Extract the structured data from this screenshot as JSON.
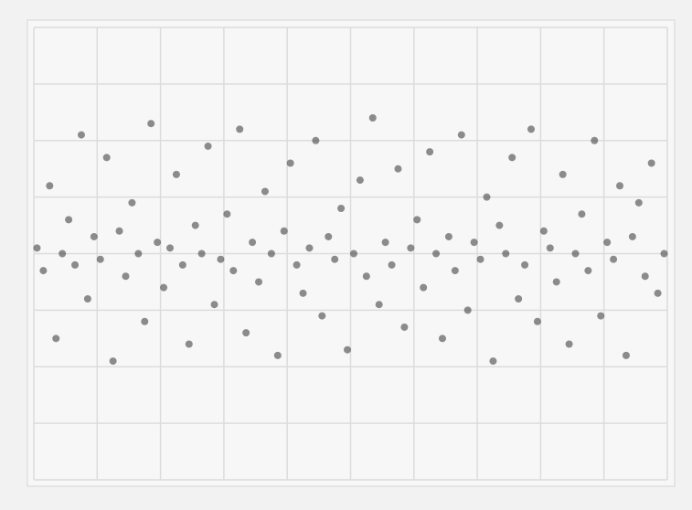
{
  "chart_data": {
    "type": "scatter",
    "xlim": [
      0,
      10
    ],
    "xticks": [
      0,
      1,
      2,
      3,
      4,
      5,
      6,
      7,
      8,
      9,
      10
    ],
    "ylim": [
      -4,
      4
    ],
    "yticks": [
      -4,
      -3,
      -2,
      -1,
      0,
      1,
      2,
      3,
      4
    ],
    "grid": true,
    "color": "#333333",
    "x": [
      0.05,
      0.15,
      0.25,
      0.35,
      0.45,
      0.55,
      0.65,
      0.75,
      0.85,
      0.95,
      1.05,
      1.15,
      1.25,
      1.35,
      1.45,
      1.55,
      1.65,
      1.75,
      1.85,
      1.95,
      2.05,
      2.15,
      2.25,
      2.35,
      2.45,
      2.55,
      2.65,
      2.75,
      2.85,
      2.95,
      3.05,
      3.15,
      3.25,
      3.35,
      3.45,
      3.55,
      3.65,
      3.75,
      3.85,
      3.95,
      4.05,
      4.15,
      4.25,
      4.35,
      4.45,
      4.55,
      4.65,
      4.75,
      4.85,
      4.95,
      5.05,
      5.15,
      5.25,
      5.35,
      5.45,
      5.55,
      5.65,
      5.75,
      5.85,
      5.95,
      6.05,
      6.15,
      6.25,
      6.35,
      6.45,
      6.55,
      6.65,
      6.75,
      6.85,
      6.95,
      7.05,
      7.15,
      7.25,
      7.35,
      7.45,
      7.55,
      7.65,
      7.75,
      7.85,
      7.95,
      8.05,
      8.15,
      8.25,
      8.35,
      8.45,
      8.55,
      8.65,
      8.75,
      8.85,
      8.95,
      9.05,
      9.15,
      9.25,
      9.35,
      9.45,
      9.55,
      9.65,
      9.75,
      9.85,
      9.95
    ],
    "values": [
      0.1,
      -0.3,
      1.2,
      -1.5,
      0.0,
      0.6,
      -0.2,
      2.1,
      -0.8,
      0.3,
      -0.1,
      1.7,
      -1.9,
      0.4,
      -0.4,
      0.9,
      0.0,
      -1.2,
      2.3,
      0.2,
      -0.6,
      0.1,
      1.4,
      -0.2,
      -1.6,
      0.5,
      0.0,
      1.9,
      -0.9,
      -0.1,
      0.7,
      -0.3,
      2.2,
      -1.4,
      0.2,
      -0.5,
      1.1,
      0.0,
      -1.8,
      0.4,
      1.6,
      -0.2,
      -0.7,
      0.1,
      2.0,
      -1.1,
      0.3,
      -0.1,
      0.8,
      -1.7,
      0.0,
      1.3,
      -0.4,
      2.4,
      -0.9,
      0.2,
      -0.2,
      1.5,
      -1.3,
      0.1,
      0.6,
      -0.6,
      1.8,
      0.0,
      -1.5,
      0.3,
      -0.3,
      2.1,
      -1.0,
      0.2,
      -0.1,
      1.0,
      -1.9,
      0.5,
      0.0,
      1.7,
      -0.8,
      -0.2,
      2.2,
      -1.2,
      0.4,
      0.1,
      -0.5,
      1.4,
      -1.6,
      0.0,
      0.7,
      -0.3,
      2.0,
      -1.1,
      0.2,
      -0.1,
      1.2,
      -1.8,
      0.3,
      0.9,
      -0.4,
      1.6,
      -0.7,
      0.0
    ]
  }
}
